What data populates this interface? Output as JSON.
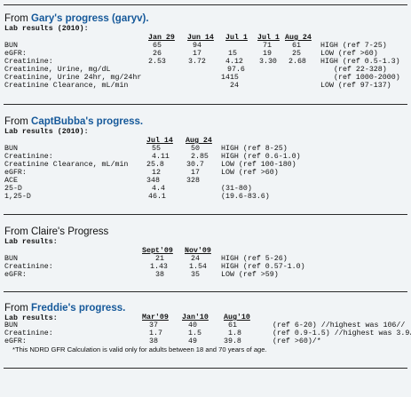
{
  "sections": [
    {
      "title_prefix": "From ",
      "title_name": "Gary's progress (garyv).",
      "lab_label": "Lab results (2010):",
      "headers": [
        "Jan 29",
        "Jun 14",
        "Jul 1",
        "Jul 1",
        "Aug 24"
      ],
      "rows": [
        [
          "BUN",
          "65",
          "94",
          "",
          "71",
          "61",
          "HIGH (ref 7-25)"
        ],
        [
          "eGFR:",
          "26",
          "17",
          "15",
          "19",
          "25",
          "LOW (ref >60)"
        ],
        [
          "Creatinine:",
          "2.53",
          "3.72",
          "4.12",
          "3.30",
          "2.68",
          "HIGH (ref 0.5-1.3)"
        ],
        [
          "Creatinine, Urine, mg/dL",
          "",
          "",
          "97.6",
          "",
          "",
          "(ref 22-328)"
        ],
        [
          "Creatinine, Urine 24hr, mg/24hr",
          "",
          "",
          "1415",
          "",
          "",
          "(ref 1000-2000)"
        ],
        [
          "Creatinine Clearance, mL/min",
          "",
          "",
          "24",
          "",
          "",
          "LOW (ref 97-137)"
        ]
      ]
    },
    {
      "title_prefix": "From ",
      "title_name": "CaptBubba's progress.",
      "lab_label": "Lab results (2010):",
      "headers": [
        "Jul 14",
        "Aug 24"
      ],
      "rows": [
        [
          "BUN",
          "55",
          "50",
          "HIGH (ref 8-25)"
        ],
        [
          "Creatinine:",
          "4.11",
          "2.85",
          "HIGH (ref 0.6-1.0)"
        ],
        [
          "Creatinine Clearance, mL/min",
          "25.8",
          "30.7",
          "LOW (ref 100-180)"
        ],
        [
          "eGFR:",
          "12",
          "17",
          "LOW (ref >60)"
        ],
        [
          "ACE",
          "348",
          "328",
          ""
        ],
        [
          "25-D",
          "4.4",
          "",
          "(31-80)"
        ],
        [
          "1,25-D",
          "46.1",
          "",
          "(19.6-83.6)"
        ]
      ]
    },
    {
      "title_prefix": "From Claire's Progress",
      "title_name": "",
      "lab_label": "Lab results:",
      "headers": [
        "Sept'09",
        "Nov'09"
      ],
      "rows": [
        [
          "BUN",
          "21",
          "24",
          "HIGH (ref 5-26)"
        ],
        [
          "Creatinine:",
          "1.43",
          "1.54",
          "HIGH (ref 0.57-1.0)"
        ],
        [
          "eGFR:",
          "38",
          "35",
          "LOW (ref >59)"
        ]
      ]
    },
    {
      "title_prefix": "From ",
      "title_name": "Freddie's progress.",
      "lab_label": "Lab results:",
      "headers": [
        "Mar'09",
        "Jan'10",
        "Aug'10"
      ],
      "rows": [
        [
          "BUN",
          "37",
          "40",
          "61",
          "(ref 6-20) //highest was 106//"
        ],
        [
          "Creatinine:",
          "1.7",
          "1.5",
          "1.8",
          "(ref 0.9-1.5) //highest was 3.9//"
        ],
        [
          "eGFR:",
          "38",
          "49",
          "39.8",
          "(ref >60)/*"
        ]
      ],
      "footnote": "*This NDRD GFR Calculation is valid only for adults between 18 and 70 years of age."
    }
  ]
}
